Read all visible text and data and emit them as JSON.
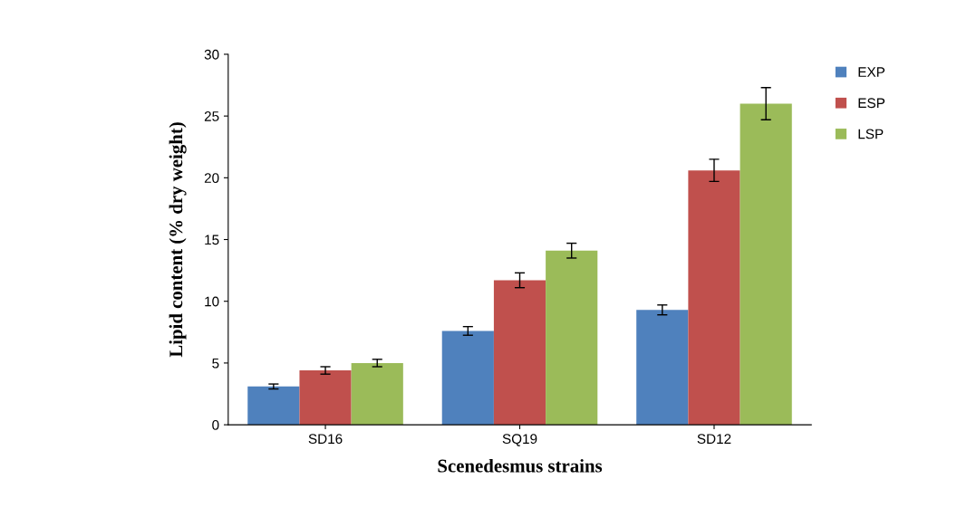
{
  "chart_data": {
    "type": "bar",
    "categories": [
      "SD16",
      "SQ19",
      "SD12"
    ],
    "series": [
      {
        "name": "EXP",
        "color": "#4f81bd",
        "values": [
          3.1,
          7.6,
          9.3
        ],
        "errors": [
          0.2,
          0.35,
          0.4
        ]
      },
      {
        "name": "ESP",
        "color": "#c0504d",
        "values": [
          4.4,
          11.7,
          20.6
        ],
        "errors": [
          0.3,
          0.6,
          0.9
        ]
      },
      {
        "name": "LSP",
        "color": "#9bbb59",
        "values": [
          5.0,
          14.1,
          26.0
        ],
        "errors": [
          0.3,
          0.6,
          1.3
        ]
      }
    ],
    "xlabel": "Scenedesmus strains",
    "ylabel": "Lipid content (% dry weight)",
    "ylim": [
      0,
      30
    ],
    "yticks": [
      0,
      5,
      10,
      15,
      20,
      25,
      30
    ],
    "grid": false,
    "legend": "top right"
  }
}
